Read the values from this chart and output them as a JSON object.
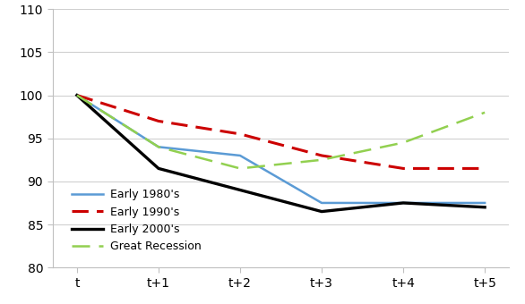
{
  "x_labels": [
    "t",
    "t+1",
    "t+2",
    "t+3",
    "t+4",
    "t+5"
  ],
  "x_values": [
    0,
    1,
    2,
    3,
    4,
    5
  ],
  "series": [
    {
      "label": "Early 1980's",
      "values": [
        100,
        94.0,
        93.0,
        87.5,
        87.5,
        87.5
      ],
      "color": "#5B9BD5",
      "linestyle": "-",
      "linewidth": 1.8,
      "zorder": 3
    },
    {
      "label": "Early 1990's",
      "values": [
        100,
        97.0,
        95.5,
        93.0,
        91.5,
        91.5
      ],
      "color": "#CC0000",
      "linestyle": "--",
      "linewidth": 2.2,
      "zorder": 3,
      "dashes": [
        6,
        3
      ]
    },
    {
      "label": "Early 2000's",
      "values": [
        100,
        91.5,
        89.0,
        86.5,
        87.5,
        87.0
      ],
      "color": "#000000",
      "linestyle": "-",
      "linewidth": 2.4,
      "zorder": 3
    },
    {
      "label": "Great Recession",
      "values": [
        100,
        94.0,
        91.5,
        92.5,
        94.5,
        98.0
      ],
      "color": "#92D050",
      "linestyle": "--",
      "linewidth": 1.8,
      "zorder": 3,
      "dashes": [
        8,
        4
      ]
    }
  ],
  "ylim": [
    80,
    110
  ],
  "yticks": [
    80,
    85,
    90,
    95,
    100,
    105,
    110
  ],
  "background_color": "#ffffff",
  "legend_fontsize": 9,
  "tick_fontsize": 10,
  "spine_color": "#c0c0c0",
  "grid_color": "#d0d0d0"
}
